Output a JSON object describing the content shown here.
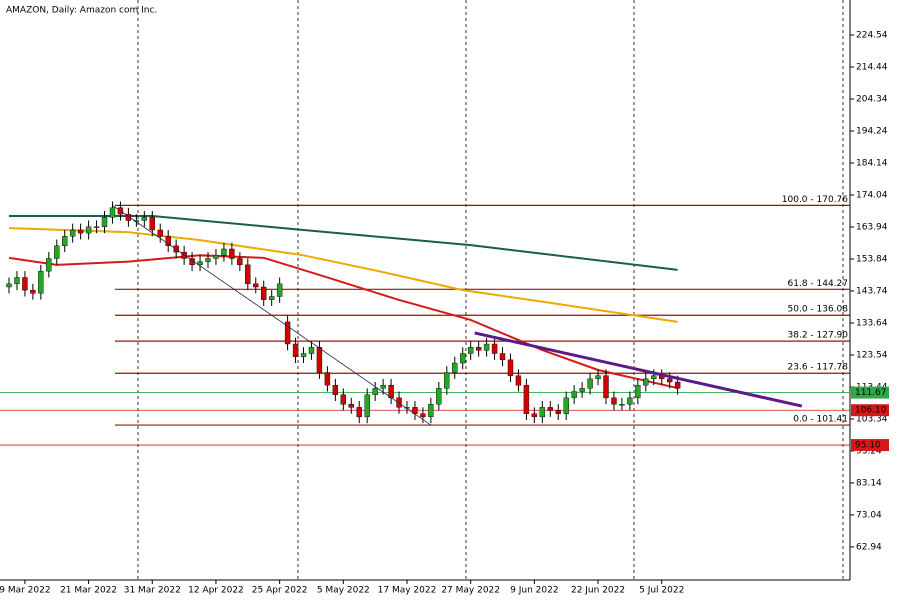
{
  "chart_data": {
    "type": "candlestick",
    "title": "AMAZON, Daily:  Amazon com Inc.",
    "categories": [
      null,
      null,
      "9 Mar 2022",
      null,
      null,
      null,
      null,
      null,
      null,
      null,
      "21 Mar 2022",
      null,
      null,
      null,
      null,
      null,
      null,
      null,
      "31 Mar 2022",
      null,
      null,
      null,
      null,
      null,
      null,
      null,
      "12 Apr 2022",
      null,
      null,
      null,
      null,
      null,
      null,
      null,
      "25 Apr 2022",
      null,
      null,
      null,
      null,
      null,
      null,
      null,
      "5 May 2022",
      null,
      null,
      null,
      null,
      null,
      null,
      null,
      "17 May 2022",
      null,
      null,
      null,
      null,
      null,
      null,
      null,
      "27 May 2022",
      null,
      null,
      null,
      null,
      null,
      null,
      null,
      "9 Jun 2022",
      null,
      null,
      null,
      null,
      null,
      null,
      null,
      "22 Jun 2022",
      null,
      null,
      null,
      null,
      null,
      null,
      null,
      "5 Jul 2022",
      null,
      null
    ],
    "open": [
      145,
      146,
      148,
      144,
      143,
      150,
      154,
      158,
      161,
      163,
      162,
      164,
      164,
      167,
      170,
      168,
      166,
      166,
      167,
      163,
      161,
      158,
      156,
      154,
      152,
      153,
      154,
      155,
      157,
      154,
      152,
      146,
      145,
      141,
      142,
      134,
      127,
      123,
      124,
      126,
      118,
      114,
      111,
      108,
      107,
      104,
      111,
      113,
      114,
      110,
      107,
      107,
      105,
      104,
      108,
      113,
      118,
      121,
      124,
      126,
      125,
      127,
      124,
      122,
      117,
      114,
      105,
      104,
      107,
      106,
      105,
      110,
      112,
      113,
      116,
      117,
      110,
      108,
      108,
      110,
      114,
      116,
      117,
      116,
      115
    ],
    "high": [
      148,
      150,
      150,
      146,
      152,
      156,
      160,
      163,
      165,
      165,
      166,
      166,
      169,
      172,
      172,
      170,
      168,
      169,
      169,
      165,
      163,
      160,
      158,
      156,
      155,
      156,
      157,
      159,
      159,
      156,
      154,
      148,
      147,
      144,
      148,
      136,
      129,
      126,
      128,
      128,
      120,
      116,
      113,
      110,
      109,
      113,
      115,
      116,
      116,
      112,
      109,
      109,
      107,
      110,
      115,
      120,
      123,
      126,
      128,
      128,
      129,
      129,
      126,
      124,
      119,
      116,
      107,
      109,
      109,
      108,
      112,
      114,
      115,
      118,
      119,
      119,
      112,
      110,
      112,
      116,
      118,
      119,
      119,
      118,
      117
    ],
    "low": [
      143,
      144,
      142,
      141,
      141,
      148,
      152,
      156,
      159,
      160,
      160,
      162,
      162,
      165,
      166,
      164,
      164,
      164,
      161,
      159,
      156,
      154,
      152,
      150,
      150,
      151,
      152,
      153,
      152,
      150,
      144,
      143,
      139,
      139,
      140,
      125,
      121,
      121,
      122,
      116,
      112,
      109,
      106,
      105,
      102,
      102,
      109,
      111,
      108,
      105,
      105,
      103,
      102,
      102,
      106,
      111,
      116,
      119,
      122,
      123,
      123,
      122,
      120,
      115,
      112,
      103,
      102,
      102,
      104,
      103,
      103,
      108,
      110,
      111,
      114,
      108,
      106,
      106,
      106,
      108,
      112,
      114,
      114,
      113,
      111
    ],
    "close": [
      146,
      148,
      144,
      143,
      150,
      154,
      158,
      161,
      163,
      162,
      164,
      164,
      167,
      170,
      168,
      166,
      166,
      167,
      163,
      161,
      158,
      156,
      154,
      152,
      153,
      154,
      155,
      157,
      154,
      152,
      146,
      145,
      141,
      142,
      146,
      127,
      123,
      124,
      126,
      118,
      114,
      111,
      108,
      107,
      104,
      111,
      113,
      114,
      110,
      107,
      107,
      105,
      104,
      108,
      113,
      118,
      121,
      124,
      126,
      125,
      127,
      124,
      122,
      117,
      114,
      105,
      104,
      107,
      106,
      105,
      110,
      112,
      113,
      116,
      117,
      110,
      108,
      108,
      110,
      114,
      116,
      117,
      116,
      115,
      113
    ],
    "bull_color": "#26a526",
    "bear_color": "#d40000",
    "ylim": [
      52.5,
      235.6
    ],
    "yticks": [
      224.54,
      214.44,
      204.34,
      194.24,
      184.14,
      174.04,
      163.94,
      153.84,
      143.74,
      133.64,
      123.54,
      113.44,
      103.34,
      93.24,
      83.14,
      73.04,
      62.94
    ],
    "moving_averages": [
      {
        "color": "#1a5e4a",
        "x": [
          0,
          18,
          37,
          58,
          84
        ],
        "values": [
          167.4,
          167.4,
          163,
          158.2,
          150.4
        ]
      },
      {
        "color": "#f0a800",
        "x": [
          0,
          15,
          24,
          37,
          47,
          57,
          68,
          84
        ],
        "values": [
          163.6,
          162.3,
          159.8,
          155,
          149.7,
          144,
          140,
          134
        ]
      },
      {
        "color": "#d81818",
        "x": [
          0,
          6,
          15,
          24,
          32,
          39,
          49,
          58,
          67,
          74,
          84
        ],
        "values": [
          154.2,
          152,
          153,
          155,
          154.2,
          148.8,
          140.9,
          134.6,
          125.1,
          118.8,
          113.1
        ]
      }
    ],
    "fibonacci": {
      "color": "#9b1010",
      "levels": [
        {
          "value": 170.76,
          "label": "100.0 - 170.76"
        },
        {
          "value": 144.27,
          "label": "61.8 - 144.27"
        },
        {
          "value": 136.08,
          "label": "50.0 - 136.08"
        },
        {
          "value": 127.9,
          "label": "38.2 - 127.90"
        },
        {
          "value": 117.78,
          "label": "23.6 - 117.78"
        },
        {
          "value": 101.41,
          "label": "0.0 - 101.41"
        }
      ]
    },
    "trendlines": [
      {
        "color": "#1c2a5c",
        "width": 0.8,
        "x": [
          13,
          53
        ],
        "values": [
          170.76,
          101.41
        ]
      },
      {
        "color": "#5a1a8c",
        "width": 3,
        "x": [
          58.5,
          99.6
        ],
        "values": [
          130.5,
          107.4
        ]
      }
    ],
    "price_lines": [
      {
        "value": 111.67,
        "color": "#2ea84a"
      },
      {
        "value": 106.1,
        "label": "106.10",
        "color": "#d81818"
      },
      {
        "value": 95.1,
        "label": "95.10",
        "color": "#d81818"
      }
    ]
  }
}
